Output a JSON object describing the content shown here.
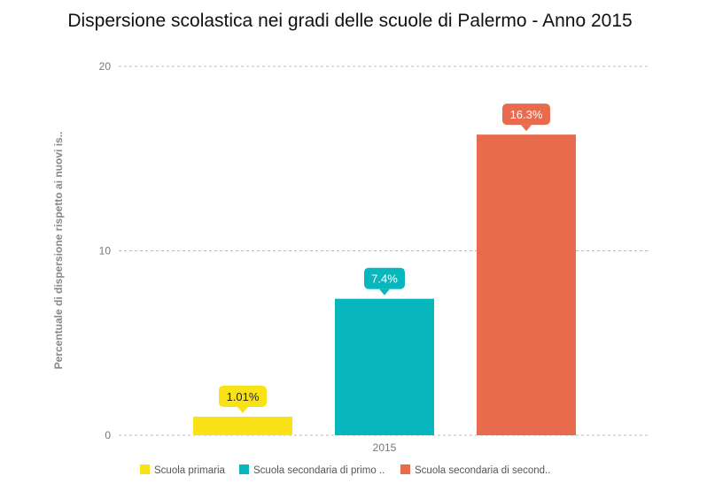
{
  "chart_data": {
    "type": "bar",
    "title": "Dispersione scolastica nei gradi delle scuole di Palermo - Anno 2015",
    "xlabel": "",
    "ylabel": "Percentuale di dispersione rispetto ai nuovi is..",
    "ylim": [
      0,
      20
    ],
    "yticks": [
      0,
      10,
      20
    ],
    "categories": [
      "2015"
    ],
    "grid": true,
    "legend_position": "bottom",
    "series": [
      {
        "name": "Scuola primaria",
        "values": [
          1.01
        ],
        "label": "1.01%",
        "color": "#f9e316",
        "label_text_color": "#222222"
      },
      {
        "name": "Scuola secondaria di primo ..",
        "values": [
          7.4
        ],
        "label": "7.4%",
        "color": "#07b7bd",
        "label_text_color": "#ffffff"
      },
      {
        "name": "Scuola secondaria di second..",
        "values": [
          16.3
        ],
        "label": "16.3%",
        "color": "#e96b4e",
        "label_text_color": "#ffffff"
      }
    ]
  }
}
